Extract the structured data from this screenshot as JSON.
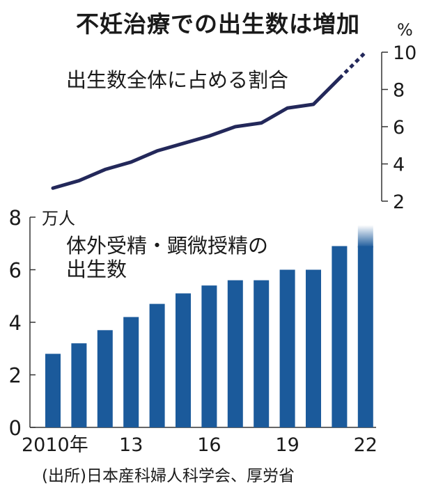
{
  "title": "不妊治療での出生数は増加",
  "source": "(出所)日本産科婦人科学会、厚労省",
  "colors": {
    "bar": "#1b5a9b",
    "line": "#23285a",
    "text": "#1a1a1a"
  },
  "chart_data": [
    {
      "type": "line",
      "label": "出生数全体に占める割合",
      "unit": "%",
      "x": [
        2010,
        2011,
        2012,
        2013,
        2014,
        2015,
        2016,
        2017,
        2018,
        2019,
        2020,
        2021,
        2022
      ],
      "values": [
        2.7,
        3.1,
        3.7,
        4.1,
        4.7,
        5.1,
        5.5,
        6.0,
        6.2,
        7.0,
        7.2,
        8.6,
        10.0
      ],
      "dashed_from": 2021,
      "ylim": [
        2,
        10
      ],
      "yticks": [
        "2",
        "4",
        "6",
        "8",
        "10"
      ],
      "axis_side": "right"
    },
    {
      "type": "bar",
      "label_lines": [
        "体外受精・顕微授精の",
        "出生数"
      ],
      "unit": "万人",
      "x": [
        2010,
        2011,
        2012,
        2013,
        2014,
        2015,
        2016,
        2017,
        2018,
        2019,
        2020,
        2021,
        2022
      ],
      "values": [
        2.8,
        3.2,
        3.7,
        4.2,
        4.7,
        5.1,
        5.4,
        5.6,
        5.6,
        6.0,
        6.0,
        6.9,
        7.7
      ],
      "faded_top_from": 2022,
      "ylim": [
        0,
        8
      ],
      "yticks": [
        "0",
        "2",
        "4",
        "6",
        "8"
      ],
      "axis_side": "left",
      "xtick_labels": [
        {
          "x": 2010,
          "text": "2010年"
        },
        {
          "x": 2013,
          "text": "13"
        },
        {
          "x": 2016,
          "text": "16"
        },
        {
          "x": 2019,
          "text": "19"
        },
        {
          "x": 2022,
          "text": "22"
        }
      ]
    }
  ]
}
